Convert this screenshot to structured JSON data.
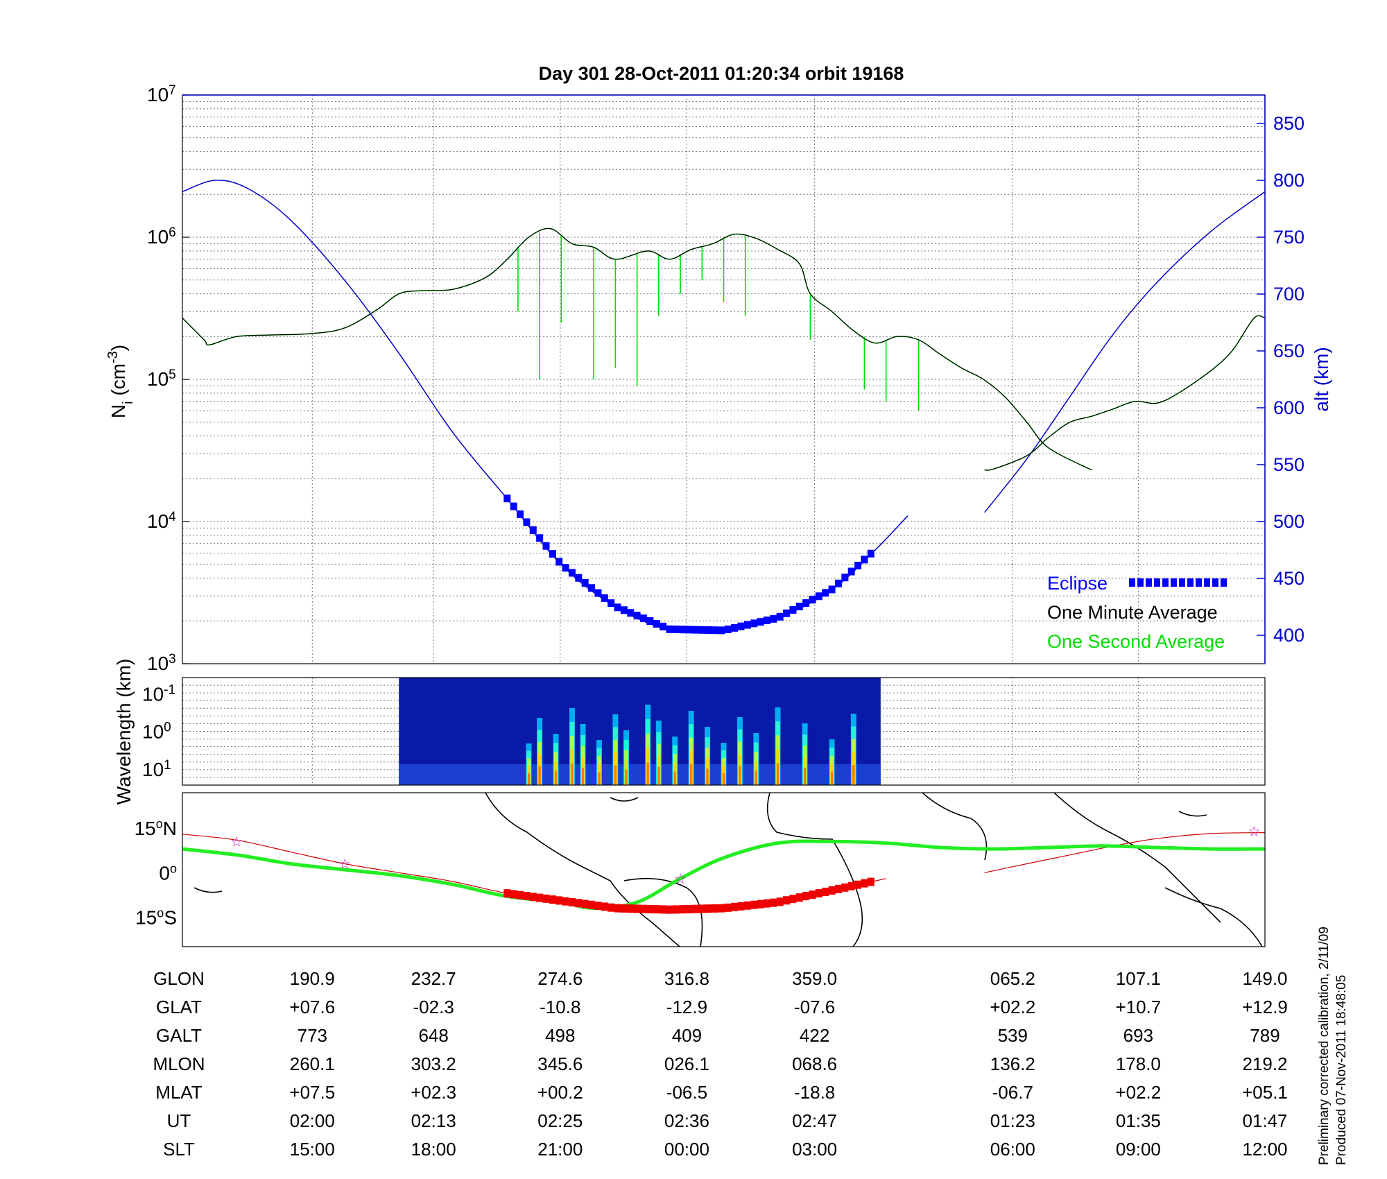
{
  "chart_data": [
    {
      "type": "line",
      "title": "Day 301  28-Oct-2011 01:20:34   orbit 19168",
      "ylabel": "N",
      "ylabel_sub": "i",
      "ylabel_unit": " (cm",
      "ylabel_unit_exp": "-3",
      "ylabel_unit_close": ")",
      "yscale": "log",
      "ylim": [
        1000,
        10000000
      ],
      "y_ticks": [
        {
          "base": "10",
          "exp": "3",
          "value": 1000
        },
        {
          "base": "10",
          "exp": "4",
          "value": 10000
        },
        {
          "base": "10",
          "exp": "5",
          "value": 100000
        },
        {
          "base": "10",
          "exp": "6",
          "value": 1000000
        },
        {
          "base": "10",
          "exp": "7",
          "value": 10000000
        }
      ],
      "y2label": "alt (km)",
      "y2lim": [
        375,
        875
      ],
      "y2_ticks": [
        "400",
        "450",
        "500",
        "550",
        "600",
        "650",
        "700",
        "750",
        "800",
        "850"
      ],
      "y2_color": "#0000cc",
      "grid": true,
      "legend_position": "bottom-right",
      "legend": [
        {
          "label": "Eclipse",
          "color": "#0000ff"
        },
        {
          "label": "One Minute Average",
          "color": "#000000"
        },
        {
          "label": "One Second Average",
          "color": "#00dd00"
        }
      ],
      "x_domain": [
        0,
        1
      ],
      "series": [
        {
          "name": "One Minute Average",
          "color": "#000000",
          "points": [
            [
              0,
              270000
            ],
            [
              0.02,
              190000
            ],
            [
              0.025,
              175000
            ],
            [
              0.05,
              200000
            ],
            [
              0.08,
              205000
            ],
            [
              0.12,
              210000
            ],
            [
              0.15,
              230000
            ],
            [
              0.18,
              310000
            ],
            [
              0.2,
              400000
            ],
            [
              0.22,
              420000
            ],
            [
              0.25,
              430000
            ],
            [
              0.28,
              520000
            ],
            [
              0.3,
              700000
            ],
            [
              0.32,
              1000000
            ],
            [
              0.34,
              1150000
            ],
            [
              0.36,
              900000
            ],
            [
              0.38,
              850000
            ],
            [
              0.4,
              700000
            ],
            [
              0.43,
              800000
            ],
            [
              0.45,
              700000
            ],
            [
              0.47,
              820000
            ],
            [
              0.49,
              900000
            ],
            [
              0.51,
              1050000
            ],
            [
              0.53,
              980000
            ],
            [
              0.55,
              820000
            ],
            [
              0.57,
              650000
            ],
            [
              0.58,
              400000
            ],
            [
              0.6,
              300000
            ],
            [
              0.62,
              220000
            ],
            [
              0.64,
              180000
            ],
            [
              0.66,
              200000
            ],
            [
              0.68,
              190000
            ],
            [
              0.7,
              150000
            ],
            [
              0.72,
              120000
            ],
            [
              0.74,
              100000
            ],
            [
              0.76,
              75000
            ],
            [
              0.78,
              50000
            ],
            [
              0.8,
              33000
            ],
            [
              0.84,
              23000
            ]
          ]
        },
        {
          "name": "",
          "color": "#000000",
          "points": [
            [
              0.741,
              23000
            ],
            [
              0.75,
              23500
            ],
            [
              0.78,
              29000
            ],
            [
              0.8,
              39000
            ],
            [
              0.82,
              50000
            ],
            [
              0.84,
              55000
            ],
            [
              0.86,
              62000
            ],
            [
              0.88,
              70000
            ],
            [
              0.9,
              68000
            ],
            [
              0.92,
              80000
            ],
            [
              0.95,
              115000
            ],
            [
              0.97,
              160000
            ],
            [
              0.99,
              270000
            ],
            [
              1.0,
              270000
            ]
          ]
        },
        {
          "name": "One Second Average",
          "color": "#00dd00",
          "dips": [
            [
              0.31,
              300000
            ],
            [
              0.33,
              100000
            ],
            [
              0.35,
              250000
            ],
            [
              0.38,
              100000
            ],
            [
              0.4,
              120000
            ],
            [
              0.42,
              90000
            ],
            [
              0.44,
              280000
            ],
            [
              0.46,
              400000
            ],
            [
              0.48,
              500000
            ],
            [
              0.5,
              350000
            ],
            [
              0.52,
              280000
            ],
            [
              0.58,
              190000
            ],
            [
              0.63,
              85000
            ],
            [
              0.65,
              70000
            ],
            [
              0.68,
              60000
            ]
          ]
        }
      ],
      "altitude": {
        "name": "altitude",
        "color": "#0000cc",
        "points": [
          [
            0,
            790
          ],
          [
            0.03,
            800
          ],
          [
            0.06,
            793
          ],
          [
            0.1,
            765
          ],
          [
            0.15,
            712
          ],
          [
            0.2,
            648
          ],
          [
            0.25,
            578
          ],
          [
            0.3,
            520
          ],
          [
            0.35,
            462
          ],
          [
            0.4,
            425
          ],
          [
            0.45,
            405
          ],
          [
            0.5,
            404
          ],
          [
            0.55,
            415
          ],
          [
            0.6,
            440
          ],
          [
            0.64,
            475
          ],
          [
            0.67,
            505
          ]
        ],
        "points_after_gap": [
          [
            0.741,
            508
          ],
          [
            0.78,
            555
          ],
          [
            0.82,
            610
          ],
          [
            0.86,
            665
          ],
          [
            0.9,
            710
          ],
          [
            0.95,
            755
          ],
          [
            1.0,
            790
          ]
        ],
        "eclipse_x_range": [
          0.3,
          0.64
        ]
      }
    },
    {
      "type": "heatmap",
      "ylabel": "Wavelength (km)",
      "y_ticks": [
        {
          "base": "10",
          "exp": "-1"
        },
        {
          "base": "10",
          "exp": "0"
        },
        {
          "base": "10",
          "exp": "1"
        }
      ],
      "x_range": [
        0.2,
        0.645
      ],
      "bright_bands_x": [
        0.32,
        0.33,
        0.345,
        0.36,
        0.37,
        0.385,
        0.4,
        0.41,
        0.43,
        0.44,
        0.455,
        0.47,
        0.485,
        0.5,
        0.515,
        0.53,
        0.55,
        0.575,
        0.6,
        0.62
      ]
    },
    {
      "type": "map",
      "y_ticks": [
        {
          "value": "15",
          "deg": "o",
          "hemi": "N"
        },
        {
          "value": "0",
          "deg": "o",
          "hemi": ""
        },
        {
          "value": "15",
          "deg": "o",
          "hemi": "S"
        }
      ],
      "ylim": [
        -25,
        27
      ],
      "track": [
        [
          0,
          13
        ],
        [
          0.05,
          11
        ],
        [
          0.1,
          7
        ],
        [
          0.15,
          3
        ],
        [
          0.2,
          0
        ],
        [
          0.25,
          -3
        ],
        [
          0.3,
          -7
        ],
        [
          0.35,
          -9.5
        ],
        [
          0.4,
          -12
        ],
        [
          0.45,
          -12.5
        ],
        [
          0.5,
          -12
        ],
        [
          0.55,
          -10
        ],
        [
          0.6,
          -6
        ],
        [
          0.65,
          -2
        ]
      ],
      "track_after_gap": [
        [
          0.741,
          0
        ],
        [
          0.78,
          3
        ],
        [
          0.82,
          6
        ],
        [
          0.86,
          9
        ],
        [
          0.9,
          11.5
        ],
        [
          0.95,
          13.2
        ],
        [
          1.0,
          13.5
        ]
      ],
      "mag_equator": [
        [
          0,
          8
        ],
        [
          0.05,
          6
        ],
        [
          0.1,
          3
        ],
        [
          0.15,
          1
        ],
        [
          0.2,
          -1
        ],
        [
          0.25,
          -4
        ],
        [
          0.3,
          -8
        ],
        [
          0.35,
          -10
        ],
        [
          0.38,
          -12
        ],
        [
          0.42,
          -10
        ],
        [
          0.46,
          -2
        ],
        [
          0.5,
          5
        ],
        [
          0.55,
          10
        ],
        [
          0.6,
          10.5
        ],
        [
          0.65,
          10
        ],
        [
          0.7,
          8.5
        ],
        [
          0.75,
          8
        ],
        [
          0.8,
          8.5
        ],
        [
          0.85,
          9
        ],
        [
          0.9,
          8.5
        ],
        [
          0.95,
          8
        ],
        [
          1.0,
          8
        ]
      ],
      "eclipse_x_range": [
        0.3,
        0.64
      ],
      "stars": [
        [
          0.05,
          10.5
        ],
        [
          0.15,
          3
        ],
        [
          0.46,
          -2
        ],
        [
          0.99,
          14
        ]
      ],
      "colors": {
        "track": "#cc0000",
        "mag_equator": "#22ee22",
        "eclipse": "#ee0000",
        "stars": "#cc00cc"
      }
    }
  ],
  "table": {
    "columns_x": [
      0.12,
      0.232,
      0.349,
      0.466,
      0.584,
      0.767,
      0.883,
      1.0
    ],
    "rows": [
      {
        "label": "GLON",
        "values": [
          "190.9",
          "232.7",
          "274.6",
          "316.8",
          "359.0",
          "065.2",
          "107.1",
          "149.0"
        ]
      },
      {
        "label": "GLAT",
        "values": [
          "+07.6",
          "-02.3",
          "-10.8",
          "-12.9",
          "-07.6",
          "+02.2",
          "+10.7",
          "+12.9"
        ]
      },
      {
        "label": "GALT",
        "values": [
          "773",
          "648",
          "498",
          "409",
          "422",
          "539",
          "693",
          "789"
        ]
      },
      {
        "label": "MLON",
        "values": [
          "260.1",
          "303.2",
          "345.6",
          "026.1",
          "068.6",
          "136.2",
          "178.0",
          "219.2"
        ]
      },
      {
        "label": "MLAT",
        "values": [
          "+07.5",
          "+02.3",
          "+00.2",
          "-06.5",
          "-18.8",
          "-06.7",
          "+02.2",
          "+05.1"
        ]
      },
      {
        "label": "UT",
        "values": [
          "02:00",
          "02:13",
          "02:25",
          "02:36",
          "02:47",
          "01:23",
          "01:35",
          "01:47"
        ]
      },
      {
        "label": "SLT",
        "values": [
          "15:00",
          "18:00",
          "21:00",
          "00:00",
          "03:00",
          "06:00",
          "09:00",
          "12:00"
        ]
      }
    ]
  },
  "footnote": {
    "line1": "Preliminary corrected calibration, 2/11/09",
    "line2": "Produced 07-Nov-2011 18:48:05"
  }
}
